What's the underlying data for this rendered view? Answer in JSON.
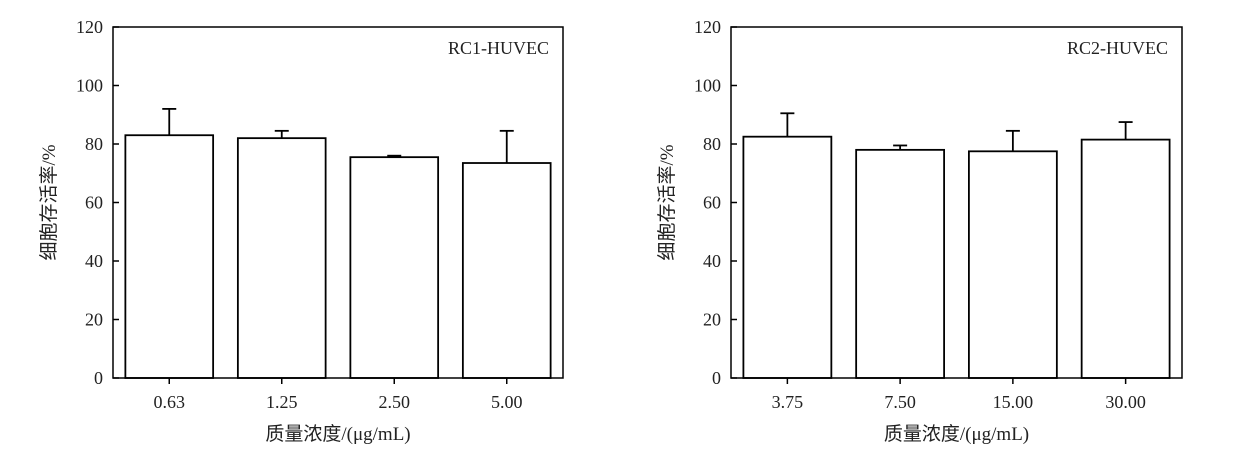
{
  "chart_data": [
    {
      "type": "bar",
      "annotation": "RC1-HUVEC",
      "xlabel": "质量浓度/(μg/mL)",
      "ylabel": "细胞存活率/%",
      "ylim": [
        0,
        120
      ],
      "yticks": [
        0,
        20,
        40,
        60,
        80,
        100,
        120
      ],
      "categories": [
        "0.63",
        "1.25",
        "2.50",
        "5.00"
      ],
      "values": [
        83,
        82,
        75.5,
        73.5
      ],
      "errors": [
        9,
        2.5,
        0.5,
        11
      ]
    },
    {
      "type": "bar",
      "annotation": "RC2-HUVEC",
      "xlabel": "质量浓度/(μg/mL)",
      "ylabel": "细胞存活率/%",
      "ylim": [
        0,
        120
      ],
      "yticks": [
        0,
        20,
        40,
        60,
        80,
        100,
        120
      ],
      "categories": [
        "3.75",
        "7.50",
        "15.00",
        "30.00"
      ],
      "values": [
        82.5,
        78,
        77.5,
        81.5
      ],
      "errors": [
        8,
        1.5,
        7,
        6
      ]
    }
  ]
}
